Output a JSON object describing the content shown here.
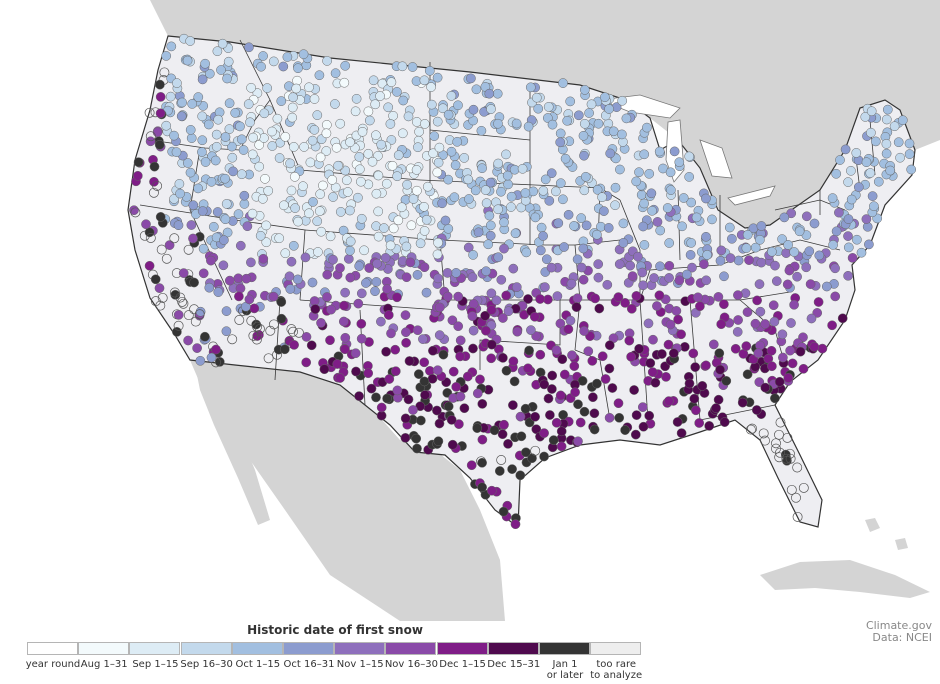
{
  "map": {
    "background_color": "#ffffff",
    "land_outside_color": "#d4d4d4",
    "us_fill_color": "#eeeef2",
    "border_color": "#333333"
  },
  "legend": {
    "title": "Historic date of first snow",
    "items": [
      {
        "label": "year round",
        "color": "#ffffff"
      },
      {
        "label": "Aug 1–31",
        "color": "#f3fafc"
      },
      {
        "label": "Sep 1–15",
        "color": "#ddecf5"
      },
      {
        "label": "Sep 16–30",
        "color": "#c3d9ec"
      },
      {
        "label": "Oct 1–15",
        "color": "#a2bfe0"
      },
      {
        "label": "Oct 16–31",
        "color": "#8c9ccf"
      },
      {
        "label": "Nov 1–15",
        "color": "#8e6fbc"
      },
      {
        "label": "Nov 16–30",
        "color": "#8a4aa8"
      },
      {
        "label": "Dec 1–15",
        "color": "#7f1d87"
      },
      {
        "label": "Dec 15–31",
        "color": "#4f0a4e"
      },
      {
        "label": "Jan 1\nor later",
        "color": "#343434"
      },
      {
        "label": "too rare\nto analyze",
        "color": "#eeeeee"
      }
    ]
  },
  "credit": {
    "line1": "Climate.gov",
    "line2": "Data: NCEI"
  }
}
